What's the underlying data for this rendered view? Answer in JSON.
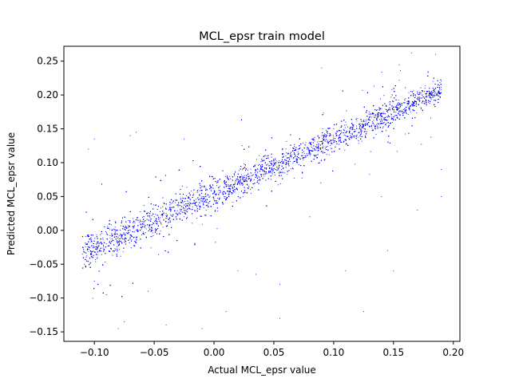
{
  "chart_data": {
    "type": "scatter",
    "title": "MCL_epsr train model",
    "xlabel": "Actual MCL_epsr value",
    "ylabel": "Predicted MCL_epsr value",
    "xlim": [
      -0.1255,
      0.2055
    ],
    "ylim": [
      -0.164,
      0.272
    ],
    "x_ticks": [
      -0.1,
      -0.05,
      0.0,
      0.05,
      0.1,
      0.15,
      0.2
    ],
    "x_tick_labels": [
      "−0.10",
      "−0.05",
      "0.00",
      "0.05",
      "0.10",
      "0.15",
      "0.20"
    ],
    "y_ticks": [
      -0.15,
      -0.1,
      -0.05,
      0.0,
      0.05,
      0.1,
      0.15,
      0.2,
      0.25
    ],
    "y_tick_labels": [
      "−0.15",
      "−0.10",
      "−0.05",
      "0.00",
      "0.05",
      "0.10",
      "0.15",
      "0.20",
      "0.25"
    ],
    "grid": false,
    "marker_color": "#0000ff",
    "series": [
      {
        "x_range": [
          -0.11,
          0.19
        ],
        "y_range": [
          -0.15,
          0.262
        ],
        "approx_trend": {
          "slope": 0.8,
          "intercept": 0.055
        },
        "approx_point_count": 30000,
        "points": [
          [
            -0.11,
            -0.035
          ],
          [
            -0.1,
            -0.025
          ],
          [
            -0.09,
            -0.02
          ],
          [
            -0.08,
            -0.01
          ],
          [
            -0.07,
            0.0
          ],
          [
            -0.06,
            0.01
          ],
          [
            -0.05,
            0.02
          ],
          [
            -0.04,
            0.025
          ],
          [
            -0.03,
            0.035
          ],
          [
            -0.02,
            0.04
          ],
          [
            -0.01,
            0.05
          ],
          [
            0.0,
            0.055
          ],
          [
            0.01,
            0.065
          ],
          [
            0.02,
            0.07
          ],
          [
            0.03,
            0.08
          ],
          [
            0.04,
            0.09
          ],
          [
            0.05,
            0.1
          ],
          [
            0.06,
            0.11
          ],
          [
            0.07,
            0.12
          ],
          [
            0.08,
            0.13
          ],
          [
            0.09,
            0.14
          ],
          [
            0.1,
            0.15
          ],
          [
            0.11,
            0.16
          ],
          [
            0.12,
            0.165
          ],
          [
            0.13,
            0.175
          ],
          [
            0.14,
            0.18
          ],
          [
            0.15,
            0.19
          ],
          [
            0.16,
            0.195
          ],
          [
            0.17,
            0.205
          ],
          [
            0.18,
            0.21
          ],
          [
            0.19,
            0.22
          ],
          [
            -0.105,
            0.12
          ],
          [
            -0.1,
            0.135
          ],
          [
            -0.1,
            -0.075
          ],
          [
            -0.09,
            -0.095
          ],
          [
            -0.08,
            -0.145
          ],
          [
            -0.075,
            -0.135
          ],
          [
            -0.07,
            0.14
          ],
          [
            -0.065,
            0.145
          ],
          [
            -0.055,
            -0.09
          ],
          [
            -0.04,
            -0.14
          ],
          [
            -0.025,
            0.135
          ],
          [
            -0.01,
            -0.145
          ],
          [
            0.01,
            -0.12
          ],
          [
            0.035,
            -0.065
          ],
          [
            0.055,
            -0.08
          ],
          [
            0.055,
            -0.13
          ],
          [
            0.09,
            0.24
          ],
          [
            0.11,
            -0.06
          ],
          [
            0.125,
            -0.12
          ],
          [
            0.145,
            -0.03
          ],
          [
            0.15,
            -0.06
          ],
          [
            0.165,
            0.262
          ],
          [
            0.185,
            0.26
          ],
          [
            0.19,
            0.09
          ],
          [
            0.19,
            0.05
          ],
          [
            0.17,
            0.03
          ],
          [
            0.14,
            0.05
          ],
          [
            0.08,
            0.02
          ],
          [
            0.02,
            -0.06
          ]
        ]
      }
    ]
  }
}
